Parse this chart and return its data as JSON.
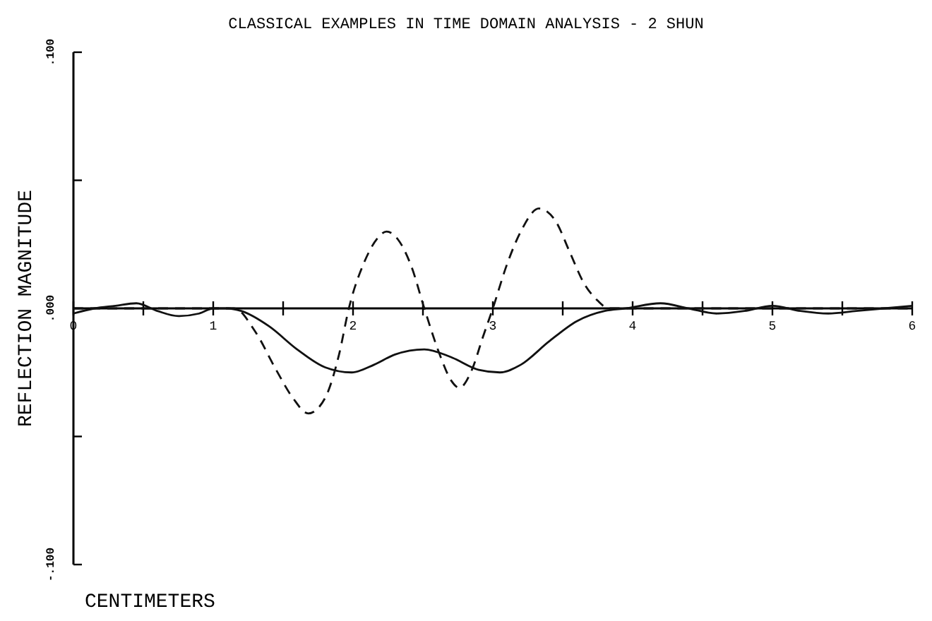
{
  "chart_data": {
    "type": "line",
    "title": "CLASSICAL EXAMPLES IN TIME DOMAIN ANALYSIS - 2 SHUN",
    "xlabel": "CENTIMETERS",
    "ylabel": "REFLECTION MAGNITUDE",
    "xlim": [
      0,
      6
    ],
    "ylim": [
      -0.1,
      0.1
    ],
    "xticks": [
      0,
      {
        "value": 0.5,
        "label": null
      },
      1,
      {
        "value": 1.5,
        "label": null
      },
      2,
      {
        "value": 2.5,
        "label": null
      },
      3,
      {
        "value": 3.5,
        "label": null
      },
      4,
      {
        "value": 4.5,
        "label": null
      },
      5,
      {
        "value": 5.5,
        "label": null
      },
      6
    ],
    "yticks": [
      {
        "value": -0.1,
        "label": "-.100"
      },
      {
        "value": -0.05,
        "label": null
      },
      {
        "value": 0,
        "label": ".000"
      },
      {
        "value": 0.05,
        "label": null
      },
      {
        "value": 0.1,
        "label": ".100"
      }
    ],
    "grid": false,
    "marker": "none",
    "series": [
      {
        "color": "#111111",
        "line_style": "solid",
        "x": [
          0,
          0.15,
          0.3,
          0.45,
          0.6,
          0.75,
          0.9,
          1.0,
          1.1,
          1.2,
          1.4,
          1.6,
          1.8,
          1.99,
          2.15,
          2.3,
          2.51,
          2.7,
          2.9,
          3.05,
          3.2,
          3.4,
          3.6,
          3.8,
          3.95,
          4.2,
          4.4,
          4.6,
          4.8,
          5.0,
          5.2,
          5.4,
          5.6,
          5.8,
          6.0
        ],
        "values": [
          -0.002,
          0,
          0.001,
          0.002,
          -0.001,
          -0.003,
          -0.002,
          0,
          0,
          -0.001,
          -0.007,
          -0.016,
          -0.023,
          -0.025,
          -0.022,
          -0.018,
          -0.016,
          -0.019,
          -0.024,
          -0.025,
          -0.022,
          -0.013,
          -0.005,
          -0.001,
          0,
          0.002,
          0,
          -0.002,
          -0.001,
          0.001,
          -0.001,
          -0.002,
          -0.001,
          0,
          0.001
        ]
      },
      {
        "color": "#111111",
        "line_style": "dashed",
        "x": [
          0,
          1.0,
          1.15,
          1.3,
          1.45,
          1.57,
          1.68,
          1.8,
          1.9,
          1.97,
          2.08,
          2.17,
          2.24,
          2.32,
          2.42,
          2.51,
          2.62,
          2.7,
          2.76,
          2.85,
          2.93,
          3.0,
          3.1,
          3.2,
          3.33,
          3.45,
          3.55,
          3.65,
          3.75,
          3.83,
          3.9,
          4.5,
          6.0
        ],
        "values": [
          0,
          0,
          0,
          -0.009,
          -0.024,
          -0.035,
          -0.041,
          -0.035,
          -0.018,
          0,
          0.018,
          0.027,
          0.03,
          0.027,
          0.016,
          0,
          -0.018,
          -0.028,
          -0.031,
          -0.024,
          -0.011,
          0,
          0.017,
          0.03,
          0.039,
          0.034,
          0.022,
          0.01,
          0.003,
          0,
          0,
          0,
          0
        ]
      }
    ]
  }
}
